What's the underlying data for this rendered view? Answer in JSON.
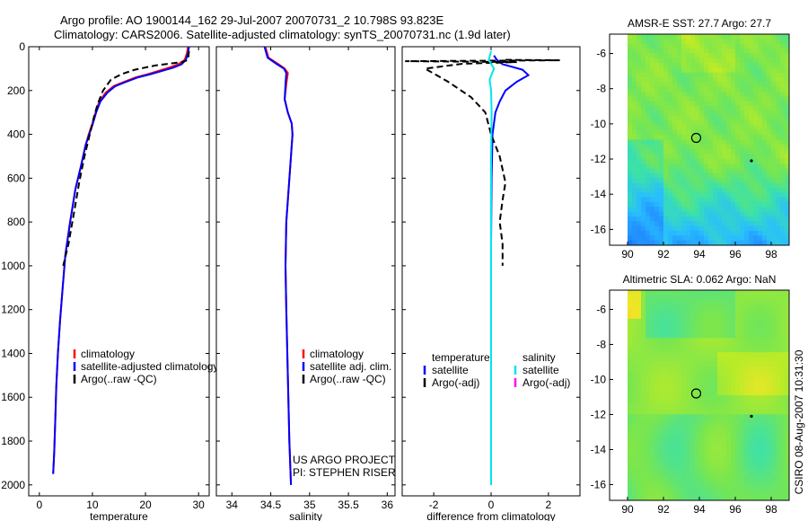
{
  "header": {
    "title_line1": "Argo profile: AO 1900144_162 29-Jul-2007 20070731_2 10.798S 93.823E",
    "title_line2": "Climatology: CARS2006. Satellite-adjusted climatology: synTS_20070731.nc (1.9d later)"
  },
  "colors": {
    "climatology": "#ff0000",
    "satellite": "#0000ff",
    "argo": "#000000",
    "salinity_satellite": "#00e5ee",
    "salinity_argo": "#ff00ff"
  },
  "depth_axis": {
    "ylim": [
      0,
      2050
    ],
    "ticks": [
      "0",
      "200",
      "400",
      "600",
      "800",
      "1000",
      "1200",
      "1400",
      "1600",
      "1800",
      "2000"
    ]
  },
  "chart_data": [
    {
      "type": "line",
      "id": "temperature",
      "xlabel": "temperature",
      "xlim": [
        -2,
        32
      ],
      "xticks": [
        0,
        10,
        20,
        30
      ],
      "xtick_labels": [
        "0",
        "10",
        "20",
        "30"
      ],
      "ylim": [
        0,
        2050
      ],
      "y_inverted": true,
      "legend": [
        "climatology",
        "satellite-adjusted climatology",
        "Argo(..raw -QC)"
      ],
      "legend_position": "lower-right",
      "series": [
        {
          "name": "climatology",
          "style": "solid",
          "x": [
            28,
            27.8,
            27.4,
            26.2,
            24.5,
            22.5,
            20.5,
            18.2,
            16,
            14,
            12.5,
            11.3,
            10.6,
            10,
            9.3,
            8.7,
            7.8,
            6.8,
            5.8,
            4.9,
            4.4,
            3.9,
            3.5,
            3.2,
            3.0,
            2.8,
            2.6
          ],
          "y": [
            0,
            30,
            60,
            80,
            95,
            110,
            125,
            140,
            160,
            180,
            210,
            250,
            300,
            350,
            400,
            450,
            550,
            650,
            800,
            950,
            1100,
            1250,
            1400,
            1550,
            1700,
            1850,
            1950
          ]
        },
        {
          "name": "satellite-adjusted climatology",
          "style": "solid",
          "x": [
            28.2,
            28,
            27.6,
            26.8,
            25.3,
            23.2,
            21,
            18.6,
            16.4,
            14.3,
            12.8,
            11.5,
            10.7,
            10.1,
            9.4,
            8.7,
            7.8,
            6.8,
            5.8,
            4.9,
            4.4,
            3.9,
            3.5,
            3.2,
            3.0,
            2.8,
            2.6
          ],
          "y": [
            0,
            30,
            60,
            80,
            95,
            110,
            125,
            140,
            160,
            180,
            210,
            250,
            300,
            350,
            400,
            450,
            550,
            650,
            800,
            950,
            1100,
            1250,
            1400,
            1550,
            1700,
            1850,
            1950
          ]
        },
        {
          "name": "Argo(..raw -QC)",
          "style": "dashed",
          "x": [
            28.2,
            28,
            27,
            22,
            18,
            15.5,
            13.5,
            12,
            11,
            10.3,
            9.5,
            8.5,
            7.5,
            6.5,
            5.5,
            4.5
          ],
          "y": [
            20,
            60,
            70,
            85,
            105,
            125,
            150,
            200,
            260,
            320,
            400,
            500,
            620,
            760,
            900,
            1000
          ]
        }
      ]
    },
    {
      "type": "line",
      "id": "salinity",
      "xlabel": "salinity",
      "xlim": [
        33.8,
        36.1
      ],
      "xticks": [
        34,
        34.5,
        35,
        35.5,
        36
      ],
      "xtick_labels": [
        "34",
        "34.5",
        "35",
        "35.5",
        "36"
      ],
      "ylim": [
        0,
        2050
      ],
      "y_inverted": true,
      "legend": [
        "climatology",
        "satellite adj. clim.",
        "Argo(..raw -QC)"
      ],
      "legend_position": "lower-right",
      "annotation": [
        "US ARGO PROJECT",
        "PI: STEPHEN RISER"
      ],
      "series": [
        {
          "name": "climatology",
          "style": "solid",
          "x": [
            34.43,
            34.47,
            34.6,
            34.68,
            34.72,
            34.7,
            34.68,
            34.72,
            34.77,
            34.78,
            34.76,
            34.73,
            34.7,
            34.69,
            34.7,
            34.72,
            34.74,
            34.76
          ],
          "y": [
            0,
            50,
            80,
            100,
            120,
            170,
            240,
            300,
            350,
            400,
            500,
            650,
            800,
            1000,
            1200,
            1500,
            1800,
            2000
          ]
        },
        {
          "name": "satellite adj. clim.",
          "style": "solid",
          "x": [
            34.42,
            34.46,
            34.58,
            34.67,
            34.7,
            34.69,
            34.68,
            34.72,
            34.77,
            34.78,
            34.76,
            34.73,
            34.7,
            34.69,
            34.7,
            34.72,
            34.74,
            34.76
          ],
          "y": [
            0,
            50,
            80,
            100,
            120,
            170,
            240,
            300,
            350,
            400,
            500,
            650,
            800,
            1000,
            1200,
            1500,
            1800,
            2000
          ]
        }
      ]
    },
    {
      "type": "line",
      "id": "difference",
      "xlabel": "difference from climatology",
      "xlim": [
        -3.1,
        3.1
      ],
      "xticks": [
        -2,
        0,
        2
      ],
      "xtick_labels": [
        "-2",
        "0",
        "2"
      ],
      "ylim": [
        0,
        2050
      ],
      "y_inverted": true,
      "legend_temperature_header": "temperature",
      "legend_salinity_header": "salinity",
      "legend_temperature": [
        "satellite",
        "Argo(-adj)"
      ],
      "legend_salinity": [
        "satellite",
        "Argo(-adj)"
      ],
      "series": [
        {
          "name": "temperature satellite",
          "style": "solid",
          "x": [
            0.1,
            0.2,
            0.4,
            1.1,
            1.3,
            0.9,
            0.5,
            0.3,
            0.15,
            0.05,
            0.02,
            0.0,
            0.0,
            0.0
          ],
          "y": [
            40,
            60,
            80,
            105,
            130,
            160,
            200,
            250,
            300,
            400,
            600,
            900,
            1200,
            2000
          ]
        },
        {
          "name": "temperature Argo(-adj)",
          "style": "dashed",
          "x": [
            0.5,
            2.4,
            -3.0,
            0.9,
            -1.0,
            -2.3,
            -1.5,
            -0.7,
            -0.2,
            0.0,
            0.3,
            0.5,
            0.4,
            0.3,
            0.4,
            0.4
          ],
          "y": [
            60,
            62,
            66,
            70,
            78,
            100,
            160,
            230,
            300,
            400,
            500,
            620,
            700,
            800,
            900,
            1000
          ]
        },
        {
          "name": "salinity satellite",
          "style": "solid",
          "x": [
            0.0,
            -0.08,
            0.1,
            -0.05,
            0.0,
            0.02,
            0.0,
            0.0,
            0.0,
            0.0
          ],
          "y": [
            20,
            60,
            100,
            150,
            200,
            300,
            500,
            900,
            1400,
            2000
          ]
        }
      ]
    },
    {
      "type": "heatmap",
      "id": "sst_map",
      "title": "AMSR-E SST: 27.7 Argo: 27.7",
      "xlim": [
        89,
        99
      ],
      "ylim": [
        -16.9,
        -4.9
      ],
      "xticks": [
        90,
        92,
        94,
        96,
        98
      ],
      "yticks": [
        -6,
        -8,
        -10,
        -12,
        -14,
        -16
      ],
      "data_extent": {
        "x": [
          90,
          99
        ],
        "y": [
          -16.9,
          -4.9
        ]
      },
      "float_position": [
        93.823,
        -10.798
      ],
      "track_point": [
        96.9,
        -12.1
      ]
    },
    {
      "type": "heatmap",
      "id": "sla_map",
      "title": "Altimetric SLA: 0.062 Argo: NaN",
      "xlim": [
        89,
        99
      ],
      "ylim": [
        -16.9,
        -4.9
      ],
      "xticks": [
        90,
        92,
        94,
        96,
        98
      ],
      "yticks": [
        -6,
        -8,
        -10,
        -12,
        -14,
        -16
      ],
      "data_extent": {
        "x": [
          90,
          99
        ],
        "y": [
          -16.9,
          -4.9
        ]
      },
      "float_position": [
        93.823,
        -10.798
      ],
      "track_point": [
        96.9,
        -12.1
      ]
    }
  ],
  "footer": {
    "credit": "CSIRO 08-Aug-2007 10:31:30"
  }
}
